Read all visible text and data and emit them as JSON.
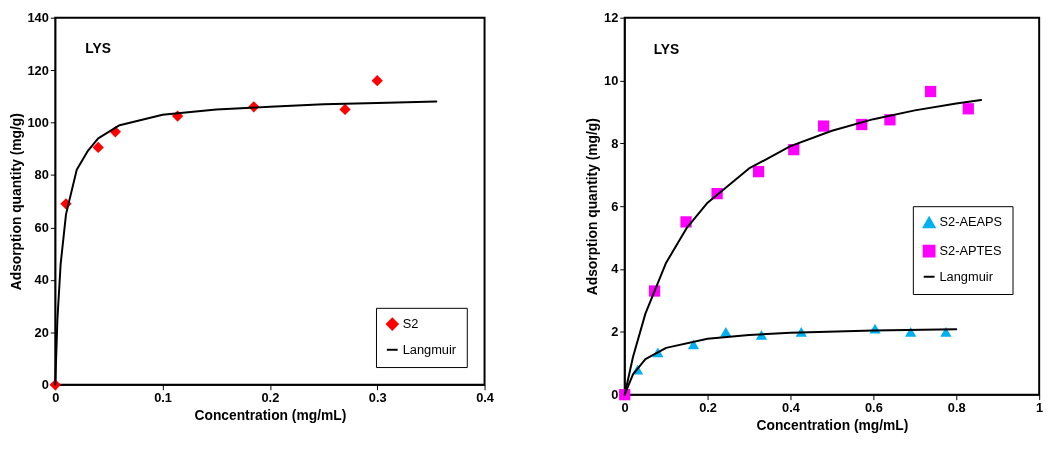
{
  "chart_data": [
    {
      "type": "scatter",
      "xlabel": "Concentration (mg/mL)",
      "ylabel": "Adsorption quantity (mg/g)",
      "annotations": [
        "LYS"
      ],
      "xlim": [
        0,
        0.4
      ],
      "xticks": [
        0,
        0.1,
        0.2,
        0.3,
        0.4
      ],
      "ylim": [
        0,
        140
      ],
      "yticks": [
        0,
        20,
        40,
        60,
        80,
        100,
        120,
        140
      ],
      "grid": false,
      "legend": "bottom right",
      "series": [
        {
          "name": "S2",
          "type": "scatter",
          "marker": "diamond",
          "color": "#ff0000",
          "x": [
            0,
            0.01,
            0.04,
            0.056,
            0.114,
            0.185,
            0.27,
            0.3
          ],
          "values": [
            0,
            69,
            90.5,
            96.5,
            102.5,
            106,
            105,
            116
          ]
        },
        {
          "name": "Langmuir",
          "type": "line",
          "color": "#000000",
          "x": [
            0,
            0.002,
            0.005,
            0.01,
            0.02,
            0.03,
            0.04,
            0.06,
            0.08,
            0.1,
            0.15,
            0.2,
            0.25,
            0.3,
            0.355
          ],
          "values": [
            0,
            25,
            46,
            65,
            82,
            89,
            94,
            99,
            101,
            103,
            105,
            106,
            107,
            107.5,
            108
          ]
        }
      ]
    },
    {
      "type": "scatter",
      "xlabel": "Concentration (mg/mL)",
      "ylabel": "Adsorption quantity (mg/g)",
      "annotations": [
        "LYS"
      ],
      "xlim": [
        0,
        1
      ],
      "xticks": [
        0,
        0.2,
        0.4,
        0.6,
        0.8,
        1
      ],
      "ylim": [
        0,
        12
      ],
      "yticks": [
        0,
        2,
        4,
        6,
        8,
        10,
        12
      ],
      "grid": false,
      "legend": "right",
      "series": [
        {
          "name": "S2-AEAPS",
          "type": "scatter",
          "marker": "triangle",
          "color": "#00b0f0",
          "x": [
            0.031,
            0.08,
            0.166,
            0.244,
            0.33,
            0.426,
            0.604,
            0.69,
            0.775
          ],
          "values": [
            0.8,
            1.35,
            1.6,
            2.0,
            1.9,
            2.0,
            2.1,
            2.0,
            2.0
          ]
        },
        {
          "name": "S2-APTES",
          "type": "scatter",
          "marker": "square",
          "color": "#ff00ff",
          "x": [
            0,
            0.072,
            0.148,
            0.223,
            0.323,
            0.408,
            0.48,
            0.572,
            0.64,
            0.738,
            0.829
          ],
          "values": [
            0,
            3.3,
            5.5,
            6.4,
            7.1,
            7.8,
            8.55,
            8.6,
            8.75,
            9.65,
            9.1
          ]
        },
        {
          "name": "Langmuir",
          "type": "line",
          "color": "#000000",
          "x": [
            0,
            0.02,
            0.05,
            0.1,
            0.15,
            0.2,
            0.3,
            0.4,
            0.5,
            0.6,
            0.7,
            0.8,
            0.86
          ],
          "values": [
            0,
            1.2,
            2.58,
            4.2,
            5.31,
            6.11,
            7.2,
            7.91,
            8.4,
            8.77,
            9.05,
            9.27,
            9.38
          ]
        },
        {
          "type": "line",
          "color": "#000000",
          "x": [
            0,
            0.02,
            0.05,
            0.1,
            0.2,
            0.3,
            0.4,
            0.6,
            0.8
          ],
          "values": [
            0,
            0.65,
            1.13,
            1.49,
            1.78,
            1.9,
            1.97,
            2.04,
            2.08
          ]
        }
      ]
    }
  ]
}
